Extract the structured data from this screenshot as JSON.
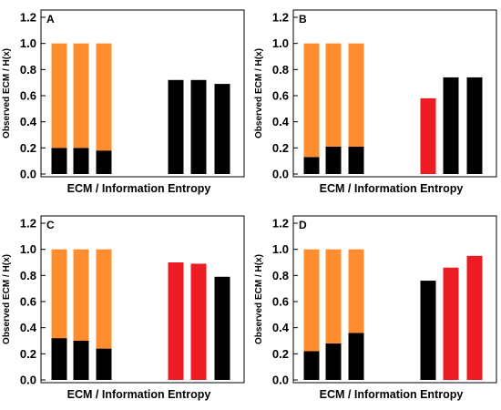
{
  "figure": {
    "colors": {
      "orange": "#ff8c2e",
      "black": "#000000",
      "red": "#ed1c24",
      "axis": "#000000"
    }
  },
  "chart_data": [
    {
      "type": "bar",
      "panel": "A",
      "xlabel": "ECM / Information Entropy",
      "ylabel": "Observed ECM / H(x)",
      "ylim": [
        0,
        1.2
      ],
      "yticks": [
        "0.0",
        "0.2",
        "0.4",
        "0.6",
        "0.8",
        "1.0",
        "1.2"
      ],
      "grid": false,
      "bars": [
        {
          "group": "left",
          "stack": [
            {
              "value": 0.2,
              "color": "black"
            },
            {
              "value": 0.8,
              "color": "orange"
            }
          ]
        },
        {
          "group": "left",
          "stack": [
            {
              "value": 0.2,
              "color": "black"
            },
            {
              "value": 0.8,
              "color": "orange"
            }
          ]
        },
        {
          "group": "left",
          "stack": [
            {
              "value": 0.18,
              "color": "black"
            },
            {
              "value": 0.82,
              "color": "orange"
            }
          ]
        },
        {
          "group": "right",
          "stack": [
            {
              "value": 0.72,
              "color": "black"
            }
          ]
        },
        {
          "group": "right",
          "stack": [
            {
              "value": 0.72,
              "color": "black"
            }
          ]
        },
        {
          "group": "right",
          "stack": [
            {
              "value": 0.69,
              "color": "black"
            }
          ]
        }
      ]
    },
    {
      "type": "bar",
      "panel": "B",
      "xlabel": "ECM / Information Entropy",
      "ylabel": "Observed ECM / H(x)",
      "ylim": [
        0,
        1.2
      ],
      "yticks": [
        "0.0",
        "0.2",
        "0.4",
        "0.6",
        "0.8",
        "1.0",
        "1.2"
      ],
      "grid": false,
      "bars": [
        {
          "group": "left",
          "stack": [
            {
              "value": 0.13,
              "color": "black"
            },
            {
              "value": 0.87,
              "color": "orange"
            }
          ]
        },
        {
          "group": "left",
          "stack": [
            {
              "value": 0.21,
              "color": "black"
            },
            {
              "value": 0.79,
              "color": "orange"
            }
          ]
        },
        {
          "group": "left",
          "stack": [
            {
              "value": 0.21,
              "color": "black"
            },
            {
              "value": 0.79,
              "color": "orange"
            }
          ]
        },
        {
          "group": "right",
          "stack": [
            {
              "value": 0.58,
              "color": "red"
            }
          ]
        },
        {
          "group": "right",
          "stack": [
            {
              "value": 0.74,
              "color": "black"
            }
          ]
        },
        {
          "group": "right",
          "stack": [
            {
              "value": 0.74,
              "color": "black"
            }
          ]
        }
      ]
    },
    {
      "type": "bar",
      "panel": "C",
      "xlabel": "ECM / Information Entropy",
      "ylabel": "Observed ECM / H(x)",
      "ylim": [
        0,
        1.2
      ],
      "yticks": [
        "0.0",
        "0.2",
        "0.4",
        "0.6",
        "0.8",
        "1.0",
        "1.2"
      ],
      "grid": false,
      "bars": [
        {
          "group": "left",
          "stack": [
            {
              "value": 0.32,
              "color": "black"
            },
            {
              "value": 0.68,
              "color": "orange"
            }
          ]
        },
        {
          "group": "left",
          "stack": [
            {
              "value": 0.3,
              "color": "black"
            },
            {
              "value": 0.7,
              "color": "orange"
            }
          ]
        },
        {
          "group": "left",
          "stack": [
            {
              "value": 0.24,
              "color": "black"
            },
            {
              "value": 0.76,
              "color": "orange"
            }
          ]
        },
        {
          "group": "right",
          "stack": [
            {
              "value": 0.9,
              "color": "red"
            }
          ]
        },
        {
          "group": "right",
          "stack": [
            {
              "value": 0.89,
              "color": "red"
            }
          ]
        },
        {
          "group": "right",
          "stack": [
            {
              "value": 0.79,
              "color": "black"
            }
          ]
        }
      ]
    },
    {
      "type": "bar",
      "panel": "D",
      "xlabel": "ECM / Information Entropy",
      "ylabel": "Observed ECM / H(x)",
      "ylim": [
        0,
        1.2
      ],
      "yticks": [
        "0.0",
        "0.2",
        "0.4",
        "0.6",
        "0.8",
        "1.0",
        "1.2"
      ],
      "grid": false,
      "bars": [
        {
          "group": "left",
          "stack": [
            {
              "value": 0.22,
              "color": "black"
            },
            {
              "value": 0.78,
              "color": "orange"
            }
          ]
        },
        {
          "group": "left",
          "stack": [
            {
              "value": 0.28,
              "color": "black"
            },
            {
              "value": 0.72,
              "color": "orange"
            }
          ]
        },
        {
          "group": "left",
          "stack": [
            {
              "value": 0.36,
              "color": "black"
            },
            {
              "value": 0.64,
              "color": "orange"
            }
          ]
        },
        {
          "group": "right",
          "stack": [
            {
              "value": 0.76,
              "color": "black"
            }
          ]
        },
        {
          "group": "right",
          "stack": [
            {
              "value": 0.86,
              "color": "red"
            }
          ]
        },
        {
          "group": "right",
          "stack": [
            {
              "value": 0.95,
              "color": "red"
            }
          ]
        }
      ]
    }
  ]
}
